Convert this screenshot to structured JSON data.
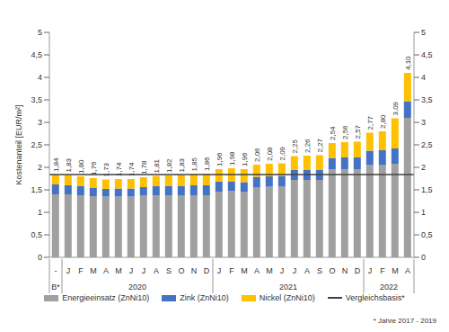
{
  "chart_data": {
    "type": "bar",
    "stacked": true,
    "grid": false,
    "legend": "bottom",
    "data_labels": true,
    "y_label": "Kostenanteil [EUR/m²]",
    "categories": [
      "-",
      "J",
      "F",
      "M",
      "A",
      "M",
      "J",
      "J",
      "A",
      "S",
      "O",
      "N",
      "D",
      "J",
      "F",
      "M",
      "A",
      "M",
      "J",
      "J",
      "A",
      "S",
      "O",
      "N",
      "D",
      "J",
      "F",
      "M",
      "A"
    ],
    "years": [
      "B*",
      "2020",
      "2020",
      "2020",
      "2020",
      "2020",
      "2020",
      "2020",
      "2020",
      "2020",
      "2020",
      "2020",
      "2020",
      "2021",
      "2021",
      "2021",
      "2021",
      "2021",
      "2021",
      "2021",
      "2021",
      "2021",
      "2021",
      "2021",
      "2021",
      "2022",
      "2022",
      "2022",
      "2022"
    ],
    "series": [
      {
        "name": "Energieeinsatz (ZnNi10)",
        "color": "#a0a0a0",
        "values": [
          1.4,
          1.4,
          1.38,
          1.36,
          1.35,
          1.35,
          1.35,
          1.37,
          1.38,
          1.38,
          1.38,
          1.38,
          1.38,
          1.46,
          1.47,
          1.45,
          1.56,
          1.57,
          1.57,
          1.72,
          1.72,
          1.72,
          1.96,
          1.96,
          1.96,
          2.05,
          2.05,
          2.08,
          3.1
        ]
      },
      {
        "name": "Zink (ZnNi10)",
        "color": "#4472c4",
        "values": [
          0.22,
          0.2,
          0.2,
          0.19,
          0.17,
          0.18,
          0.18,
          0.19,
          0.2,
          0.21,
          0.21,
          0.22,
          0.22,
          0.22,
          0.22,
          0.22,
          0.23,
          0.23,
          0.24,
          0.22,
          0.22,
          0.22,
          0.25,
          0.26,
          0.26,
          0.32,
          0.33,
          0.34,
          0.37
        ]
      },
      {
        "name": "Nickel (ZnNi10)",
        "color": "#ffc000",
        "values": [
          0.22,
          0.23,
          0.22,
          0.21,
          0.21,
          0.21,
          0.21,
          0.22,
          0.23,
          0.23,
          0.24,
          0.25,
          0.26,
          0.28,
          0.29,
          0.29,
          0.27,
          0.28,
          0.28,
          0.31,
          0.32,
          0.33,
          0.33,
          0.34,
          0.35,
          0.4,
          0.42,
          0.67,
          0.63
        ]
      }
    ],
    "totals": [
      1.84,
      1.83,
      1.8,
      1.76,
      1.73,
      1.74,
      1.74,
      1.78,
      1.81,
      1.82,
      1.83,
      1.85,
      1.86,
      1.96,
      1.98,
      1.96,
      2.06,
      2.08,
      2.09,
      2.25,
      2.26,
      2.27,
      2.54,
      2.56,
      2.57,
      2.77,
      2.8,
      3.09,
      4.1
    ],
    "total_labels": [
      "1,84",
      "1,83",
      "1,80",
      "1,76",
      "1,73",
      "1,74",
      "1,74",
      "1,78",
      "1,81",
      "1,82",
      "1,83",
      "1,85",
      "1,86",
      "1,96",
      "1,98",
      "1,96",
      "2,06",
      "2,08",
      "2,09",
      "2,25",
      "2,26",
      "2,27",
      "2,54",
      "2,56",
      "2,57",
      "2,77",
      "2,80",
      "3,09",
      "4,10"
    ],
    "reference_line": {
      "name": "Vergleichsbasis*",
      "value": 1.84,
      "color": "#404040"
    },
    "ylim": [
      0,
      5
    ],
    "yticks": [
      0,
      {
        "value": 0.5,
        "label": "0,5"
      },
      1,
      {
        "value": 1.5,
        "label": "1,5"
      },
      2,
      {
        "value": 2.5,
        "label": "2,5"
      },
      3,
      {
        "value": 3.5,
        "label": "3,5"
      },
      4,
      {
        "value": 4.5,
        "label": "4,5"
      },
      5
    ],
    "y2lim": [
      0,
      5
    ],
    "y2ticks": [
      0,
      {
        "value": 0.5,
        "label": "0,5"
      },
      1,
      {
        "value": 1.5,
        "label": "1,5"
      },
      2,
      {
        "value": 2.5,
        "label": "2,5"
      },
      3,
      {
        "value": 3.5,
        "label": "3,5"
      },
      4,
      {
        "value": 4.5,
        "label": "4,5"
      },
      5
    ],
    "annotations": [
      "* Jahre 2017 - 2019"
    ]
  }
}
